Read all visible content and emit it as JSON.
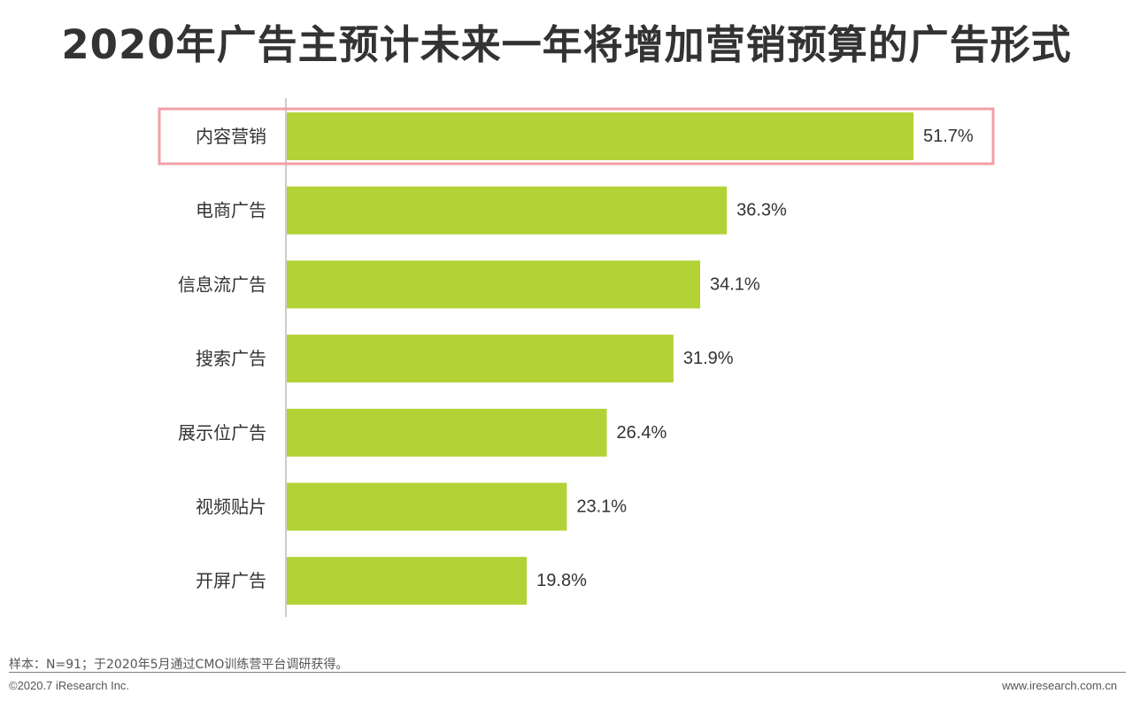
{
  "title": "2020年广告主预计未来一年将增加营销预算的广告形式",
  "chart_data": {
    "type": "bar",
    "orientation": "horizontal",
    "categories": [
      "内容营销",
      "电商广告",
      "信息流广告",
      "搜索广告",
      "展示位广告",
      "视频贴片",
      "开屏广告"
    ],
    "values": [
      51.7,
      36.3,
      34.1,
      31.9,
      26.4,
      23.1,
      19.8
    ],
    "value_labels": [
      "51.7%",
      "36.3%",
      "34.1%",
      "31.9%",
      "26.4%",
      "23.1%",
      "19.8%"
    ],
    "bar_color": "#b2d235",
    "highlight_color": "#f0a0a6",
    "highlighted_category": "内容营销",
    "xlim": [
      0,
      55
    ],
    "grid": false
  },
  "footer": {
    "note": "样本：N=91；于2020年5月通过CMO训练营平台调研获得。",
    "copyright": "©2020.7 iResearch Inc.",
    "website": "www.iresearch.com.cn"
  }
}
